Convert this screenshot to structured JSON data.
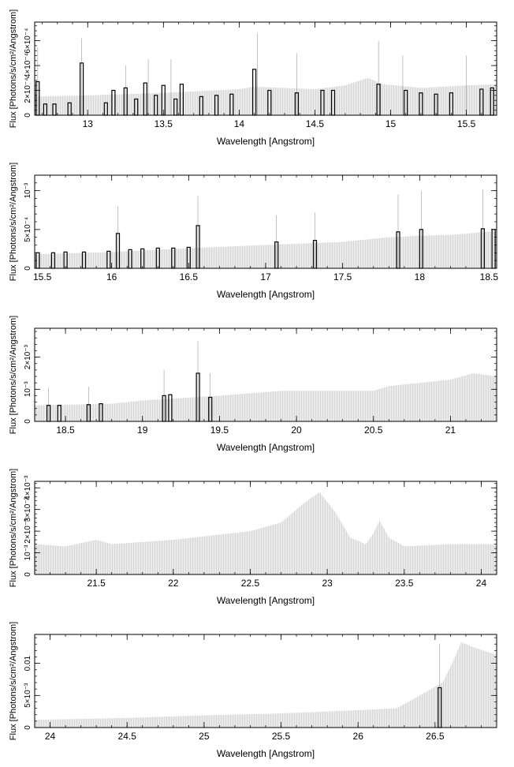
{
  "colors": {
    "model": "#bbbbbb",
    "data": "#000000",
    "frame": "#000000",
    "background": "#ffffff"
  },
  "chart_data": [
    {
      "type": "line",
      "xlabel": "Wavelength [Angstrom]",
      "ylabel": "Flux [Photons/s/cm²/Angstrom]",
      "xlim": [
        12.65,
        15.7
      ],
      "ylim": [
        0,
        0.00075
      ],
      "xticks": [
        {
          "v": 13,
          "t": "13"
        },
        {
          "v": 13.5,
          "t": "13.5"
        },
        {
          "v": 14,
          "t": "14"
        },
        {
          "v": 14.5,
          "t": "14.5"
        },
        {
          "v": 15,
          "t": "15"
        },
        {
          "v": 15.5,
          "t": "15.5"
        }
      ],
      "yticks": [
        {
          "v": 0,
          "t": "0"
        },
        {
          "v": 0.0002,
          "t": "2×10⁻⁴"
        },
        {
          "v": 0.0004,
          "t": "4×10⁻⁴"
        },
        {
          "v": 0.0006,
          "t": "6×10⁻⁴"
        }
      ],
      "model": [
        [
          12.65,
          0.00015
        ],
        [
          13.0,
          0.00016
        ],
        [
          13.5,
          0.00018
        ],
        [
          14.0,
          0.00021
        ],
        [
          14.1,
          0.00023
        ],
        [
          14.5,
          0.00021
        ],
        [
          14.7,
          0.00024
        ],
        [
          14.85,
          0.0003
        ],
        [
          14.95,
          0.00025
        ],
        [
          15.2,
          0.00022
        ],
        [
          15.5,
          0.00024
        ],
        [
          15.7,
          0.00025
        ]
      ],
      "data_bins": [
        [
          12.67,
          0.00027
        ],
        [
          12.72,
          9e-05
        ],
        [
          12.78,
          9e-05
        ],
        [
          12.88,
          0.0001
        ],
        [
          12.96,
          0.00042
        ],
        [
          13.12,
          0.0001
        ],
        [
          13.17,
          0.0002
        ],
        [
          13.25,
          0.00022
        ],
        [
          13.32,
          0.00013
        ],
        [
          13.38,
          0.00026
        ],
        [
          13.45,
          0.00016
        ],
        [
          13.5,
          0.00024
        ],
        [
          13.58,
          0.00013
        ],
        [
          13.62,
          0.00025
        ],
        [
          13.75,
          0.00015
        ],
        [
          13.85,
          0.00016
        ],
        [
          13.95,
          0.00017
        ],
        [
          14.1,
          0.00037
        ],
        [
          14.2,
          0.0002
        ],
        [
          14.38,
          0.00018
        ],
        [
          14.55,
          0.0002
        ],
        [
          14.62,
          0.0002
        ],
        [
          14.92,
          0.00025
        ],
        [
          15.1,
          0.0002
        ],
        [
          15.2,
          0.00018
        ],
        [
          15.3,
          0.00017
        ],
        [
          15.4,
          0.00018
        ],
        [
          15.6,
          0.00021
        ],
        [
          15.67,
          0.00022
        ]
      ],
      "error_bars": [
        [
          12.67,
          0.00055
        ],
        [
          12.96,
          0.00062
        ],
        [
          13.25,
          0.0004
        ],
        [
          13.4,
          0.00045
        ],
        [
          13.55,
          0.00045
        ],
        [
          14.12,
          0.00066
        ],
        [
          14.38,
          0.0005
        ],
        [
          14.92,
          0.0006
        ],
        [
          15.08,
          0.00048
        ],
        [
          15.5,
          0.00048
        ]
      ]
    },
    {
      "type": "line",
      "xlabel": "Wavelength [Angstrom]",
      "ylabel": "Flux [Photons/s/cm²/Angstrom]",
      "xlim": [
        15.5,
        18.5
      ],
      "ylim": [
        0,
        0.0012
      ],
      "xticks": [
        {
          "v": 15.5,
          "t": "15.5"
        },
        {
          "v": 16,
          "t": "16"
        },
        {
          "v": 16.5,
          "t": "16.5"
        },
        {
          "v": 17,
          "t": "17"
        },
        {
          "v": 17.5,
          "t": "17.5"
        },
        {
          "v": 18,
          "t": "18"
        },
        {
          "v": 18.5,
          "t": "18.5"
        }
      ],
      "yticks": [
        {
          "v": 0,
          "t": "0"
        },
        {
          "v": 0.0005,
          "t": "5×10⁻⁴"
        },
        {
          "v": 0.001,
          "t": "10⁻³"
        }
      ],
      "model": [
        [
          15.5,
          0.00018
        ],
        [
          16.0,
          0.00021
        ],
        [
          16.5,
          0.00026
        ],
        [
          17.0,
          0.0003
        ],
        [
          17.5,
          0.00034
        ],
        [
          17.8,
          0.0004
        ],
        [
          18.0,
          0.00042
        ],
        [
          18.2,
          0.00043
        ],
        [
          18.5,
          0.00048
        ]
      ],
      "data_bins": [
        [
          15.52,
          0.0002
        ],
        [
          15.62,
          0.0002
        ],
        [
          15.7,
          0.00021
        ],
        [
          15.82,
          0.00021
        ],
        [
          15.98,
          0.00022
        ],
        [
          16.04,
          0.00045
        ],
        [
          16.12,
          0.00024
        ],
        [
          16.2,
          0.00025
        ],
        [
          16.3,
          0.00026
        ],
        [
          16.4,
          0.00026
        ],
        [
          16.5,
          0.00027
        ],
        [
          16.56,
          0.00055
        ],
        [
          17.07,
          0.00034
        ],
        [
          17.32,
          0.00036
        ],
        [
          17.86,
          0.00047
        ],
        [
          18.01,
          0.0005
        ],
        [
          18.41,
          0.00051
        ],
        [
          18.48,
          0.0005
        ]
      ],
      "error_bars": [
        [
          16.04,
          0.0008
        ],
        [
          16.56,
          0.00093
        ],
        [
          17.07,
          0.00068
        ],
        [
          17.32,
          0.00072
        ],
        [
          17.86,
          0.00095
        ],
        [
          18.01,
          0.001
        ],
        [
          18.41,
          0.00102
        ]
      ]
    },
    {
      "type": "line",
      "xlabel": "Wavelength [Angstrom]",
      "ylabel": "Flux [Photons/s/cm²/Angstrom]",
      "xlim": [
        18.3,
        21.3
      ],
      "ylim": [
        0,
        0.0029
      ],
      "xticks": [
        {
          "v": 18.5,
          "t": "18.5"
        },
        {
          "v": 19,
          "t": "19"
        },
        {
          "v": 19.5,
          "t": "19.5"
        },
        {
          "v": 20,
          "t": "20"
        },
        {
          "v": 20.5,
          "t": "20.5"
        },
        {
          "v": 21,
          "t": "21"
        }
      ],
      "yticks": [
        {
          "v": 0,
          "t": "0"
        },
        {
          "v": 0.001,
          "t": "10⁻³"
        },
        {
          "v": 0.002,
          "t": "2×10⁻³"
        }
      ],
      "model": [
        [
          18.3,
          0.0005
        ],
        [
          18.8,
          0.00055
        ],
        [
          19.0,
          0.00065
        ],
        [
          19.5,
          0.0008
        ],
        [
          19.9,
          0.00095
        ],
        [
          20.5,
          0.00095
        ],
        [
          20.6,
          0.0011
        ],
        [
          21.0,
          0.0013
        ],
        [
          21.15,
          0.0015
        ],
        [
          21.3,
          0.0014
        ]
      ],
      "data_bins": [
        [
          18.39,
          0.0005
        ],
        [
          18.46,
          0.0005
        ],
        [
          18.65,
          0.00052
        ],
        [
          18.73,
          0.00055
        ],
        [
          19.14,
          0.0008
        ],
        [
          19.18,
          0.00083
        ],
        [
          19.36,
          0.0015
        ],
        [
          19.44,
          0.00075
        ]
      ],
      "error_bars": [
        [
          18.39,
          0.00105
        ],
        [
          18.65,
          0.00108
        ],
        [
          19.14,
          0.0016
        ],
        [
          19.36,
          0.0025
        ],
        [
          19.44,
          0.0015
        ]
      ]
    },
    {
      "type": "line",
      "xlabel": "Wavelength [Angstrom]",
      "ylabel": "Flux [Photons/s/cm²/Angstrom]",
      "xlim": [
        21.1,
        24.1
      ],
      "ylim": [
        0,
        0.0043
      ],
      "xticks": [
        {
          "v": 21.5,
          "t": "21.5"
        },
        {
          "v": 22,
          "t": "22"
        },
        {
          "v": 22.5,
          "t": "22.5"
        },
        {
          "v": 23,
          "t": "23"
        },
        {
          "v": 23.5,
          "t": "23.5"
        },
        {
          "v": 24,
          "t": "24"
        }
      ],
      "yticks": [
        {
          "v": 0,
          "t": "0"
        },
        {
          "v": 0.001,
          "t": "10⁻³"
        },
        {
          "v": 0.002,
          "t": "2×10⁻³"
        },
        {
          "v": 0.003,
          "t": "3×10⁻³"
        },
        {
          "v": 0.004,
          "t": "4×10⁻³"
        }
      ],
      "model": [
        [
          21.1,
          0.0014
        ],
        [
          21.3,
          0.0013
        ],
        [
          21.5,
          0.0016
        ],
        [
          21.6,
          0.0014
        ],
        [
          22.0,
          0.0016
        ],
        [
          22.5,
          0.002
        ],
        [
          22.7,
          0.0024
        ],
        [
          22.85,
          0.0033
        ],
        [
          22.95,
          0.0038
        ],
        [
          23.05,
          0.0029
        ],
        [
          23.15,
          0.0017
        ],
        [
          23.25,
          0.0014
        ],
        [
          23.3,
          0.0019
        ],
        [
          23.34,
          0.0025
        ],
        [
          23.4,
          0.0017
        ],
        [
          23.5,
          0.0013
        ],
        [
          23.8,
          0.0014
        ],
        [
          24.1,
          0.0014
        ]
      ],
      "data_bins": [],
      "error_bars": []
    },
    {
      "type": "line",
      "xlabel": "Wavelength [Angstrom]",
      "ylabel": "Flux [Photons/s/cm²/Angstrom]",
      "xlim": [
        23.9,
        26.9
      ],
      "ylim": [
        0,
        0.0145
      ],
      "xticks": [
        {
          "v": 24,
          "t": "24"
        },
        {
          "v": 24.5,
          "t": "24.5"
        },
        {
          "v": 25,
          "t": "25"
        },
        {
          "v": 25.5,
          "t": "25.5"
        },
        {
          "v": 26,
          "t": "26"
        },
        {
          "v": 26.5,
          "t": "26.5"
        }
      ],
      "yticks": [
        {
          "v": 0,
          "t": "0"
        },
        {
          "v": 0.005,
          "t": "5×10⁻³"
        },
        {
          "v": 0.01,
          "t": "0.01"
        }
      ],
      "model": [
        [
          23.9,
          0.0012
        ],
        [
          24.5,
          0.0015
        ],
        [
          25.0,
          0.0019
        ],
        [
          25.5,
          0.0022
        ],
        [
          26.0,
          0.0027
        ],
        [
          26.25,
          0.003
        ],
        [
          26.4,
          0.005
        ],
        [
          26.55,
          0.007
        ],
        [
          26.62,
          0.0105
        ],
        [
          26.67,
          0.0133
        ],
        [
          26.75,
          0.0125
        ],
        [
          26.9,
          0.0113
        ]
      ],
      "data_bins": [
        [
          26.53,
          0.0062
        ]
      ],
      "error_bars": [
        [
          26.53,
          0.013
        ]
      ]
    }
  ]
}
